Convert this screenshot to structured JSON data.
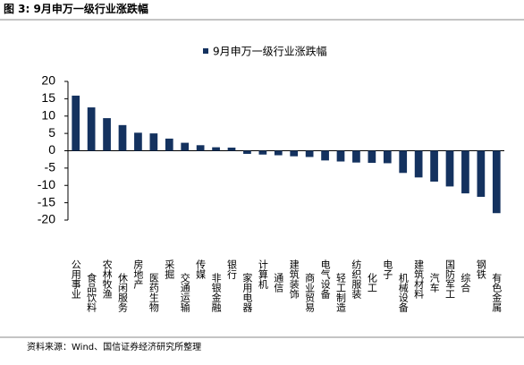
{
  "caption": "图 3: 9月申万一级行业涨跌幅",
  "source": "资料来源：Wind、国信证券经济研究所整理",
  "chart_data": {
    "type": "bar",
    "categories": [
      "公用事业",
      "食品饮料",
      "农林牧渔",
      "休闲服务",
      "房地产",
      "医药生物",
      "采掘",
      "交通运输",
      "传媒",
      "非银金融",
      "银行",
      "家用电器",
      "计算机",
      "通信",
      "建筑装饰",
      "商业贸易",
      "电气设备",
      "轻工制造",
      "纺织服装",
      "化工",
      "电子",
      "机械设备",
      "建筑材料",
      "汽车",
      "国防军工",
      "综合",
      "钢铁",
      "有色金属"
    ],
    "series": [
      {
        "name": "9月申万一级行业涨跌幅",
        "color": "#14325f",
        "values": [
          15.9,
          12.5,
          9.4,
          7.4,
          5.2,
          5.0,
          3.5,
          2.3,
          1.6,
          1.0,
          0.9,
          -0.9,
          -1.1,
          -1.3,
          -1.6,
          -1.8,
          -2.8,
          -3.1,
          -3.4,
          -3.5,
          -3.6,
          -6.4,
          -7.7,
          -8.9,
          -10.3,
          -12.3,
          -13.3,
          -18.0
        ]
      }
    ],
    "ylim": [
      -20,
      20
    ],
    "yticks": [
      -20,
      -15,
      -10,
      -5,
      0,
      5,
      10,
      15,
      20
    ]
  }
}
